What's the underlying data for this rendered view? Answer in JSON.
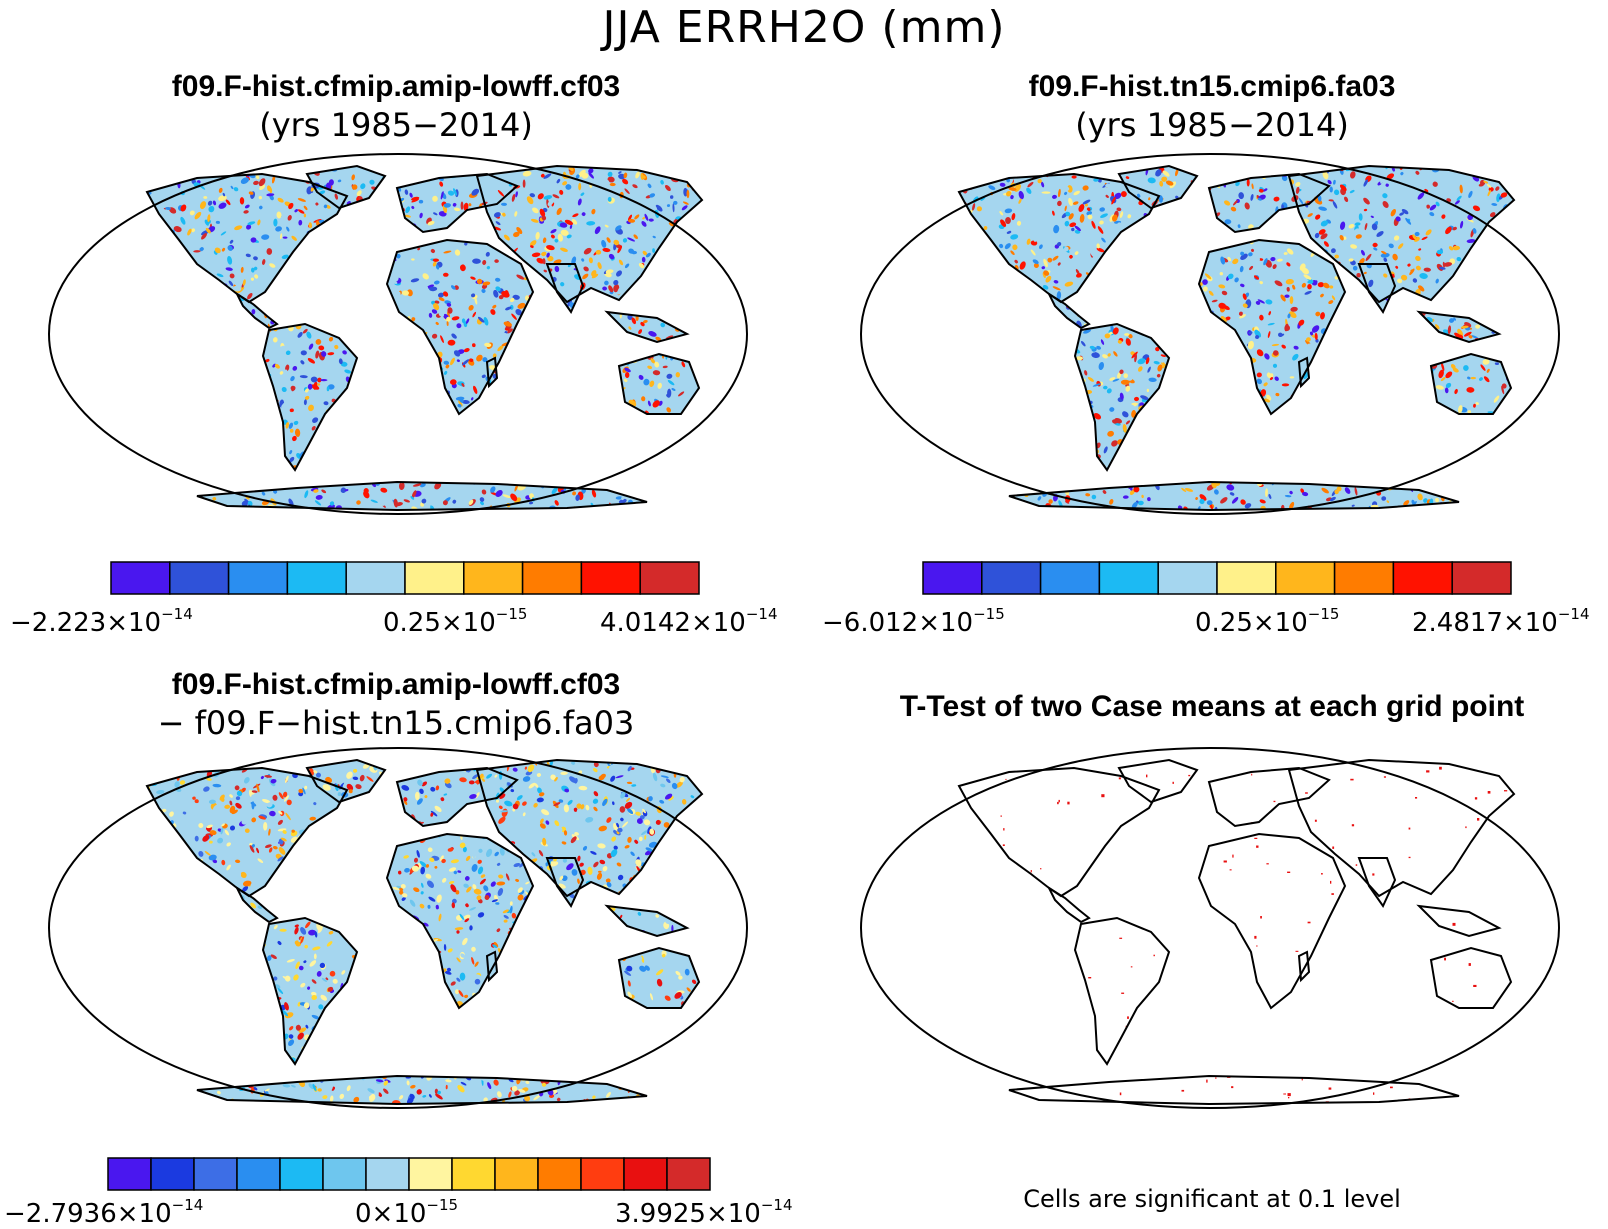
{
  "title": "JJA ERRH2O (mm)",
  "panels": [
    {
      "title": "f09.F-hist.cfmip.amip-lowff.cf03",
      "subtitle": "(yrs 1985−2014)",
      "colorbar": {
        "colors": [
          "#4a17ef",
          "#2f52d9",
          "#2a8ef0",
          "#1cbaf3",
          "#a5d6ef",
          "#fff18a",
          "#ffb61c",
          "#ff7c00",
          "#ff1200",
          "#d42a2a"
        ],
        "labels": [
          {
            "mantissa": "−2.223×10",
            "exponent": "−14"
          },
          {
            "mantissa": "0.25×10",
            "exponent": "−15"
          },
          {
            "mantissa": "4.0142×10",
            "exponent": "−14"
          }
        ]
      }
    },
    {
      "title": "f09.F-hist.tn15.cmip6.fa03",
      "subtitle": "(yrs 1985−2014)",
      "colorbar": {
        "colors": [
          "#4a17ef",
          "#2f52d9",
          "#2a8ef0",
          "#1cbaf3",
          "#a5d6ef",
          "#fff18a",
          "#ffb61c",
          "#ff7c00",
          "#ff1200",
          "#d42a2a"
        ],
        "labels": [
          {
            "mantissa": "−6.012×10",
            "exponent": "−15"
          },
          {
            "mantissa": "0.25×10",
            "exponent": "−15"
          },
          {
            "mantissa": "2.4817×10",
            "exponent": "−14"
          }
        ]
      }
    },
    {
      "title": "f09.F-hist.cfmip.amip-lowff.cf03",
      "subtitle": "−  f09.F−hist.tn15.cmip6.fa03",
      "colorbar": {
        "colors": [
          "#4a17ef",
          "#1b3ae0",
          "#3d6ee6",
          "#2a8ef0",
          "#1cbaf3",
          "#6ec6ee",
          "#a5d6ef",
          "#fff5a0",
          "#ffd830",
          "#ffb61c",
          "#ff7c00",
          "#ff3d10",
          "#e81010",
          "#d42a2a"
        ],
        "labels": [
          {
            "mantissa": "−2.7936×10",
            "exponent": "−14"
          },
          {
            "mantissa": "0×10",
            "exponent": "−15"
          },
          {
            "mantissa": "3.9925×10",
            "exponent": "−14"
          }
        ]
      }
    },
    {
      "title": "T-Test of two Case means at each grid point",
      "note": "Cells are significant at 0.1 level"
    }
  ],
  "colors": {
    "land_fill": "#a5d6ef",
    "significant": "#e81010",
    "frame": "#000000"
  }
}
